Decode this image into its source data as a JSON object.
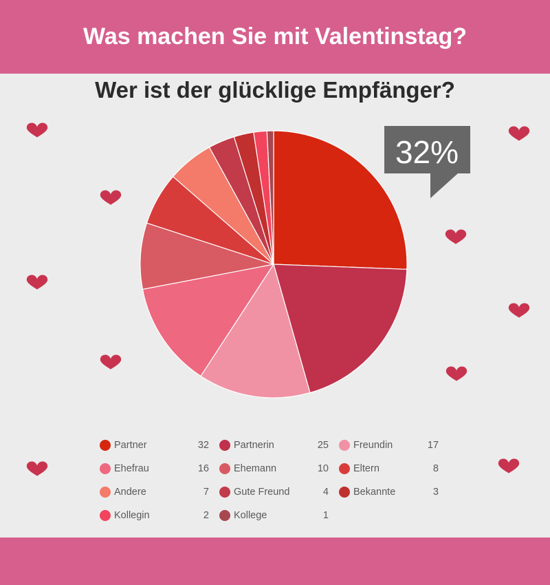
{
  "header": {
    "title": "Was machen Sie mit Valentinstag?"
  },
  "subtitle": "Wer ist der glücklige Empfänger?",
  "callout": {
    "text": "32%"
  },
  "chart_data": {
    "type": "pie",
    "title": "Wer ist der glücklige Empfänger?",
    "categories": [
      "Partner",
      "Partnerin",
      "Freundin",
      "Ehefrau",
      "Ehemann",
      "Eltern",
      "Andere",
      "Gute Freund",
      "Bekannte",
      "Kollegin",
      "Kollege"
    ],
    "values": [
      32,
      25,
      17,
      16,
      10,
      8,
      7,
      4,
      3,
      2,
      1
    ],
    "colors": [
      "#d6260f",
      "#c0314c",
      "#f092a4",
      "#ee6880",
      "#d85a63",
      "#d83c3a",
      "#f47a6a",
      "#c13b4b",
      "#c0302f",
      "#f2445c",
      "#a8474f"
    ],
    "legend_position": "bottom"
  },
  "legend": [
    {
      "label": "Partner",
      "value": "32",
      "color": "#d6260f"
    },
    {
      "label": "Partnerin",
      "value": "25",
      "color": "#c0314c"
    },
    {
      "label": "Freundin",
      "value": "17",
      "color": "#f092a4"
    },
    {
      "label": "Ehefrau",
      "value": "16",
      "color": "#ee6880"
    },
    {
      "label": "Ehemann",
      "value": "10",
      "color": "#d85a63"
    },
    {
      "label": "Eltern",
      "value": "8",
      "color": "#d83c3a"
    },
    {
      "label": "Andere",
      "value": "7",
      "color": "#f47a6a"
    },
    {
      "label": "Gute Freund",
      "value": "4",
      "color": "#c13b4b"
    },
    {
      "label": "Bekannte",
      "value": "3",
      "color": "#c0302f"
    },
    {
      "label": "Kollegin",
      "value": "2",
      "color": "#f2445c"
    },
    {
      "label": "Kollege",
      "value": "1",
      "color": "#a8474f"
    }
  ],
  "colors": {
    "banner": "#d65f8d",
    "background": "#ececec",
    "heart": "#c8344f",
    "callout": "#676767"
  },
  "icons": {
    "decoration": "heart-icon"
  }
}
